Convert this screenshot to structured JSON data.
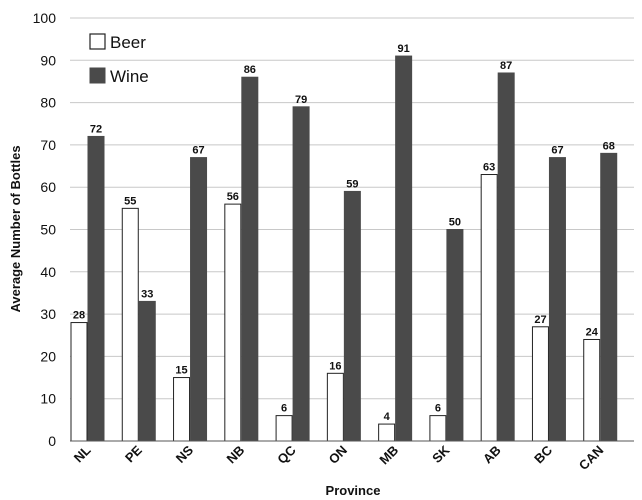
{
  "chart_data": {
    "type": "bar",
    "title": "",
    "xlabel": "Province",
    "ylabel": "Average Number of Bottles",
    "ylim": [
      0,
      100
    ],
    "yticks": [
      0,
      10,
      20,
      30,
      40,
      50,
      60,
      70,
      80,
      90,
      100
    ],
    "grid": "horizontal",
    "legend_position": "top-left",
    "categories": [
      "NL",
      "PE",
      "NS",
      "NB",
      "QC",
      "ON",
      "MB",
      "SK",
      "AB",
      "BC",
      "CAN"
    ],
    "series": [
      {
        "name": "Beer",
        "values": [
          28,
          55,
          15,
          56,
          6,
          16,
          4,
          6,
          63,
          27,
          24
        ],
        "color": "#ffffff",
        "stroke": "#222222"
      },
      {
        "name": "Wine",
        "values": [
          72,
          33,
          67,
          86,
          79,
          59,
          91,
          50,
          87,
          67,
          68
        ],
        "color": "#4a4a4a",
        "stroke": "#4a4a4a"
      }
    ],
    "colors": {
      "grid": "#c8c8c8",
      "axis": "#555555",
      "background": "#ffffff"
    }
  }
}
